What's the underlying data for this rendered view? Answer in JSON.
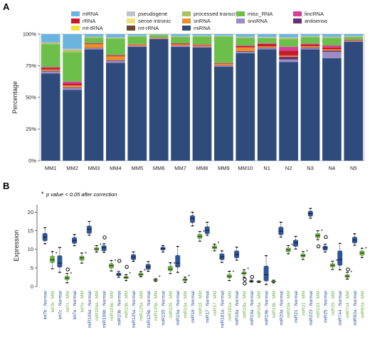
{
  "chart_data": [
    {
      "panel": "A",
      "type": "bar",
      "stacked": true,
      "ylabel": "Percentage",
      "ylim": [
        0,
        100
      ],
      "yticks": [
        "0%",
        "25%",
        "50%",
        "75%",
        "100%"
      ],
      "categories": [
        "MM1",
        "MM2",
        "MM3",
        "MM4",
        "MM5",
        "MM6",
        "MM7",
        "MM8",
        "MM9",
        "MM10",
        "N1",
        "N2",
        "N3",
        "N4",
        "N5"
      ],
      "legend": [
        {
          "name": "mRNA",
          "color": "#6cb4e0"
        },
        {
          "name": "pseudogene",
          "color": "#bfc4ca"
        },
        {
          "name": "processed transcript",
          "color": "#a9c25b"
        },
        {
          "name": "misc_RNA",
          "color": "#6cbf4a"
        },
        {
          "name": "lincRNA",
          "color": "#d63f9b"
        },
        {
          "name": "rRNA",
          "color": "#c51b2a"
        },
        {
          "name": "sense intronic",
          "color": "#f1e07a"
        },
        {
          "name": "snRNA",
          "color": "#e8902a"
        },
        {
          "name": "snoRNA",
          "color": "#9a8ec4"
        },
        {
          "name": "antisense",
          "color": "#6a2e78"
        },
        {
          "name": "mt-tRNA",
          "color": "#f4e23a"
        },
        {
          "name": "mt-rRNA",
          "color": "#6b4a2a"
        },
        {
          "name": "miRNA",
          "color": "#2f4b7c"
        }
      ],
      "series": [
        {
          "name": "miRNA",
          "color": "#2f4b7c",
          "values": [
            69,
            56,
            88,
            77,
            90,
            96,
            90,
            89.5,
            74,
            85,
            88,
            78,
            88,
            81,
            94
          ]
        },
        {
          "name": "snoRNA",
          "color": "#9a8ec4",
          "values": [
            1.5,
            1.5,
            0.8,
            1.5,
            0.5,
            0.3,
            0.7,
            0.5,
            0.8,
            1,
            1,
            2,
            1,
            5,
            0.5
          ]
        },
        {
          "name": "antisense",
          "color": "#6a2e78",
          "values": [
            0.5,
            0.5,
            0.3,
            0.5,
            0.2,
            0.1,
            0.2,
            0.2,
            0.3,
            0.5,
            0.3,
            2,
            0.5,
            1,
            0.2
          ]
        },
        {
          "name": "snRNA",
          "color": "#e8902a",
          "values": [
            1,
            1.5,
            3,
            3,
            1,
            0.5,
            1,
            1,
            1,
            3,
            1,
            1,
            1,
            1,
            0.5
          ]
        },
        {
          "name": "rRNA",
          "color": "#c51b2a",
          "values": [
            1.5,
            1.5,
            0.5,
            0.5,
            0.3,
            0.2,
            0.5,
            0.5,
            0.5,
            1,
            2,
            4,
            1.5,
            1.5,
            0.3
          ]
        },
        {
          "name": "lincRNA",
          "color": "#d63f9b",
          "values": [
            0.5,
            1.5,
            0.3,
            0.5,
            0.2,
            0.1,
            0.3,
            0.3,
            0.3,
            0.5,
            0.5,
            3,
            0.5,
            1.5,
            0.2
          ]
        },
        {
          "name": "misc_RNA",
          "color": "#6cbf4a",
          "values": [
            18,
            23,
            4,
            13,
            6,
            2,
            5,
            6,
            21,
            6,
            4,
            6,
            5,
            6,
            2
          ]
        },
        {
          "name": "processed transcript",
          "color": "#a9c25b",
          "values": [
            1,
            2,
            0.8,
            0.5,
            0.3,
            0.1,
            0.5,
            0.5,
            0.3,
            0.5,
            0.5,
            1,
            0.5,
            0.5,
            0.3
          ]
        },
        {
          "name": "pseudogene",
          "color": "#bfc4ca",
          "values": [
            0.5,
            1,
            0.3,
            0.5,
            0.3,
            0.1,
            0.3,
            0.3,
            0.3,
            0.5,
            0.5,
            0.5,
            0.5,
            0.5,
            0.5
          ]
        },
        {
          "name": "mRNA",
          "color": "#6cb4e0",
          "values": [
            6.5,
            11.5,
            2,
            2.5,
            1.2,
            0.5,
            1.5,
            1.2,
            1.2,
            2,
            2.2,
            2.5,
            1.5,
            2,
            1.5
          ]
        }
      ]
    },
    {
      "panel": "B",
      "type": "box",
      "ylabel": "Expression",
      "ylim": [
        0,
        22
      ],
      "yticks": [
        0,
        5,
        10,
        15,
        20
      ],
      "note": "p value < 0.05 after correction",
      "normal_color": "#2f5597",
      "mm_color": "#70ad47",
      "categories": [
        "let7b : Normal",
        "let7b : MM",
        "let7c : Normal",
        "let7c : MM",
        "let7e : Normal",
        "let7e : MM",
        "miR106a : Normal",
        "miR106a : MM",
        "miR106b : Normal",
        "miR106b : MM",
        "miR10b : Normal",
        "miR10b : MM",
        "miR125a : Normal",
        "miR125a : MM",
        "miR125b : Normal",
        "miR125b : MM",
        "miR155 : Normal",
        "miR155 : MM",
        "miR15a : Normal",
        "miR15a : MM",
        "miR16 : Normal",
        "miR16 : MM",
        "miR17 : Normal",
        "miR17 : MM",
        "miR181a : Normal",
        "miR181a : MM",
        "miR18a : Normal",
        "miR18a : MM",
        "miR19a : Normal",
        "miR19a : MM",
        "miR19b : Normal",
        "miR19b : MM",
        "miR20a : Normal",
        "miR20a : MM",
        "miR21 : Normal",
        "miR21 : MM",
        "miR223 : Normal",
        "miR223 : MM",
        "miR25 : Normal",
        "miR25 : MM",
        "miR744 : Normal",
        "miR744 : MM",
        "miR92a : Normal",
        "miR92a : MM"
      ],
      "boxes": [
        {
          "min": 11.5,
          "q1": 12.3,
          "median": 13.3,
          "q3": 14.3,
          "max": 15.8,
          "outliers": [],
          "star": false
        },
        {
          "min": 4.8,
          "q1": 6.4,
          "median": 7.2,
          "q3": 8.2,
          "max": 9.4,
          "outliers": [],
          "star": true
        },
        {
          "min": 3.8,
          "q1": 5.2,
          "median": 6.3,
          "q3": 8.3,
          "max": 10.5,
          "outliers": [],
          "star": false
        },
        {
          "min": 1,
          "q1": 1.8,
          "median": 2.3,
          "q3": 2.8,
          "max": 3.5,
          "outliers": [
            4.6
          ],
          "star": true
        },
        {
          "min": 11,
          "q1": 11.6,
          "median": 12.4,
          "q3": 13.2,
          "max": 14,
          "outliers": [],
          "star": false
        },
        {
          "min": 6.3,
          "q1": 7,
          "median": 7.7,
          "q3": 8.2,
          "max": 9,
          "outliers": [],
          "star": true
        },
        {
          "min": 13.8,
          "q1": 14.3,
          "median": 15.4,
          "q3": 16.3,
          "max": 17.5,
          "outliers": [],
          "star": false
        },
        {
          "min": 9.3,
          "q1": 9.7,
          "median": 10.1,
          "q3": 10.5,
          "max": 11,
          "outliers": [],
          "star": true
        },
        {
          "min": 9.2,
          "q1": 9.6,
          "median": 10.4,
          "q3": 11,
          "max": 11.5,
          "outliers": [
            13.2
          ],
          "star": false
        },
        {
          "min": 4.2,
          "q1": 4.9,
          "median": 5.6,
          "q3": 6.2,
          "max": 7,
          "outliers": [],
          "star": true
        },
        {
          "min": 2.5,
          "q1": 2.9,
          "median": 3.3,
          "q3": 3.6,
          "max": 4,
          "outliers": [
            6.9
          ],
          "star": false
        },
        {
          "min": 1.6,
          "q1": 2.1,
          "median": 2.4,
          "q3": 2.8,
          "max": 3.2,
          "outliers": [
            5.3
          ],
          "star": true
        },
        {
          "min": 6.8,
          "q1": 7.2,
          "median": 7.9,
          "q3": 8.6,
          "max": 9.3,
          "outliers": [],
          "star": false
        },
        {
          "min": 2.6,
          "q1": 2.9,
          "median": 3.2,
          "q3": 3.6,
          "max": 4,
          "outliers": [],
          "star": true
        },
        {
          "min": 4.1,
          "q1": 4.6,
          "median": 5.3,
          "q3": 6,
          "max": 6.7,
          "outliers": [],
          "star": false
        },
        {
          "min": 1.4,
          "q1": 1.6,
          "median": 1.75,
          "q3": 1.9,
          "max": 2.1,
          "outliers": [],
          "star": true
        },
        {
          "min": 9.3,
          "q1": 9.8,
          "median": 10.2,
          "q3": 10.6,
          "max": 11,
          "outliers": [],
          "star": false
        },
        {
          "min": 3.5,
          "q1": 4.2,
          "median": 4.7,
          "q3": 5.5,
          "max": 6.4,
          "outliers": [],
          "star": true
        },
        {
          "min": 3.8,
          "q1": 5.2,
          "median": 6.3,
          "q3": 8.4,
          "max": 10.8,
          "outliers": [],
          "star": false
        },
        {
          "min": 1.1,
          "q1": 1.5,
          "median": 1.8,
          "q3": 2.1,
          "max": 2.5,
          "outliers": [],
          "star": true
        },
        {
          "min": 16.3,
          "q1": 17.2,
          "median": 18.3,
          "q3": 19.1,
          "max": 20,
          "outliers": [],
          "star": false
        },
        {
          "min": 12.2,
          "q1": 12.9,
          "median": 13.5,
          "q3": 14.1,
          "max": 14.8,
          "outliers": [],
          "star": true
        },
        {
          "min": 13.8,
          "q1": 14.2,
          "median": 15.1,
          "q3": 16.1,
          "max": 17.3,
          "outliers": [],
          "star": false
        },
        {
          "min": 9.6,
          "q1": 10.1,
          "median": 10.5,
          "q3": 11,
          "max": 11.4,
          "outliers": [],
          "star": true
        },
        {
          "min": 6.5,
          "q1": 7.2,
          "median": 7.9,
          "q3": 8.8,
          "max": 9.6,
          "outliers": [],
          "star": false
        },
        {
          "min": 1.6,
          "q1": 2.3,
          "median": 2.7,
          "q3": 3.3,
          "max": 4.1,
          "outliers": [],
          "star": true
        },
        {
          "min": 7.1,
          "q1": 7.7,
          "median": 8.6,
          "q3": 9.6,
          "max": 10.6,
          "outliers": [],
          "star": false
        },
        {
          "min": 2.5,
          "q1": 3.2,
          "median": 3.6,
          "q3": 4,
          "max": 4.5,
          "outliers": [
            0.8,
            1.9
          ],
          "star": true
        },
        {
          "min": 1.2,
          "q1": 1.3,
          "median": 1.4,
          "q3": 1.5,
          "max": 1.7,
          "outliers": [
            2.6
          ],
          "star": false
        },
        {
          "min": 1.1,
          "q1": 1.2,
          "median": 1.3,
          "q3": 1.4,
          "max": 1.5,
          "outliers": [],
          "star": false
        },
        {
          "min": 0.5,
          "q1": 1.5,
          "median": 3.2,
          "q3": 5.5,
          "max": 8.3,
          "outliers": [],
          "star": false
        },
        {
          "min": 1,
          "q1": 1.2,
          "median": 1.35,
          "q3": 1.5,
          "max": 1.7,
          "outliers": [],
          "star": false
        },
        {
          "min": 13.3,
          "q1": 13.9,
          "median": 14.9,
          "q3": 16,
          "max": 17.3,
          "outliers": [],
          "star": false
        },
        {
          "min": 8.8,
          "q1": 9.3,
          "median": 9.9,
          "q3": 10.4,
          "max": 11,
          "outliers": [],
          "star": true
        },
        {
          "min": 10.1,
          "q1": 10.8,
          "median": 11.8,
          "q3": 12.5,
          "max": 13.5,
          "outliers": [],
          "star": false
        },
        {
          "min": 7.3,
          "q1": 7.9,
          "median": 8.3,
          "q3": 8.8,
          "max": 9.4,
          "outliers": [],
          "star": true
        },
        {
          "min": 18.4,
          "q1": 18.9,
          "median": 19.6,
          "q3": 20.3,
          "max": 21,
          "outliers": [],
          "star": false
        },
        {
          "min": 12.6,
          "q1": 13.1,
          "median": 13.7,
          "q3": 14.3,
          "max": 15,
          "outliers": [
            10.8
          ],
          "star": true
        },
        {
          "min": 9.3,
          "q1": 9.8,
          "median": 10.4,
          "q3": 10.9,
          "max": 11.4,
          "outliers": [
            13.3
          ],
          "star": false
        },
        {
          "min": 4.6,
          "q1": 5.2,
          "median": 5.7,
          "q3": 6.2,
          "max": 6.8,
          "outliers": [],
          "star": true
        },
        {
          "min": 4.5,
          "q1": 5.7,
          "median": 7.2,
          "q3": 9.6,
          "max": 11.6,
          "outliers": [],
          "star": false
        },
        {
          "min": 2,
          "q1": 2.4,
          "median": 2.8,
          "q3": 3.2,
          "max": 3.8,
          "outliers": [
            4.6
          ],
          "star": true
        },
        {
          "min": 11.1,
          "q1": 11.7,
          "median": 12.5,
          "q3": 13.3,
          "max": 14.2,
          "outliers": [],
          "star": false
        },
        {
          "min": 7.8,
          "q1": 8.4,
          "median": 9,
          "q3": 9.6,
          "max": 10.3,
          "outliers": [],
          "star": true
        }
      ]
    }
  ],
  "labels": {
    "panel_a": "A",
    "panel_b": "B",
    "star_symbol": "*",
    "note_text": "p value < 0.05 after correction"
  }
}
